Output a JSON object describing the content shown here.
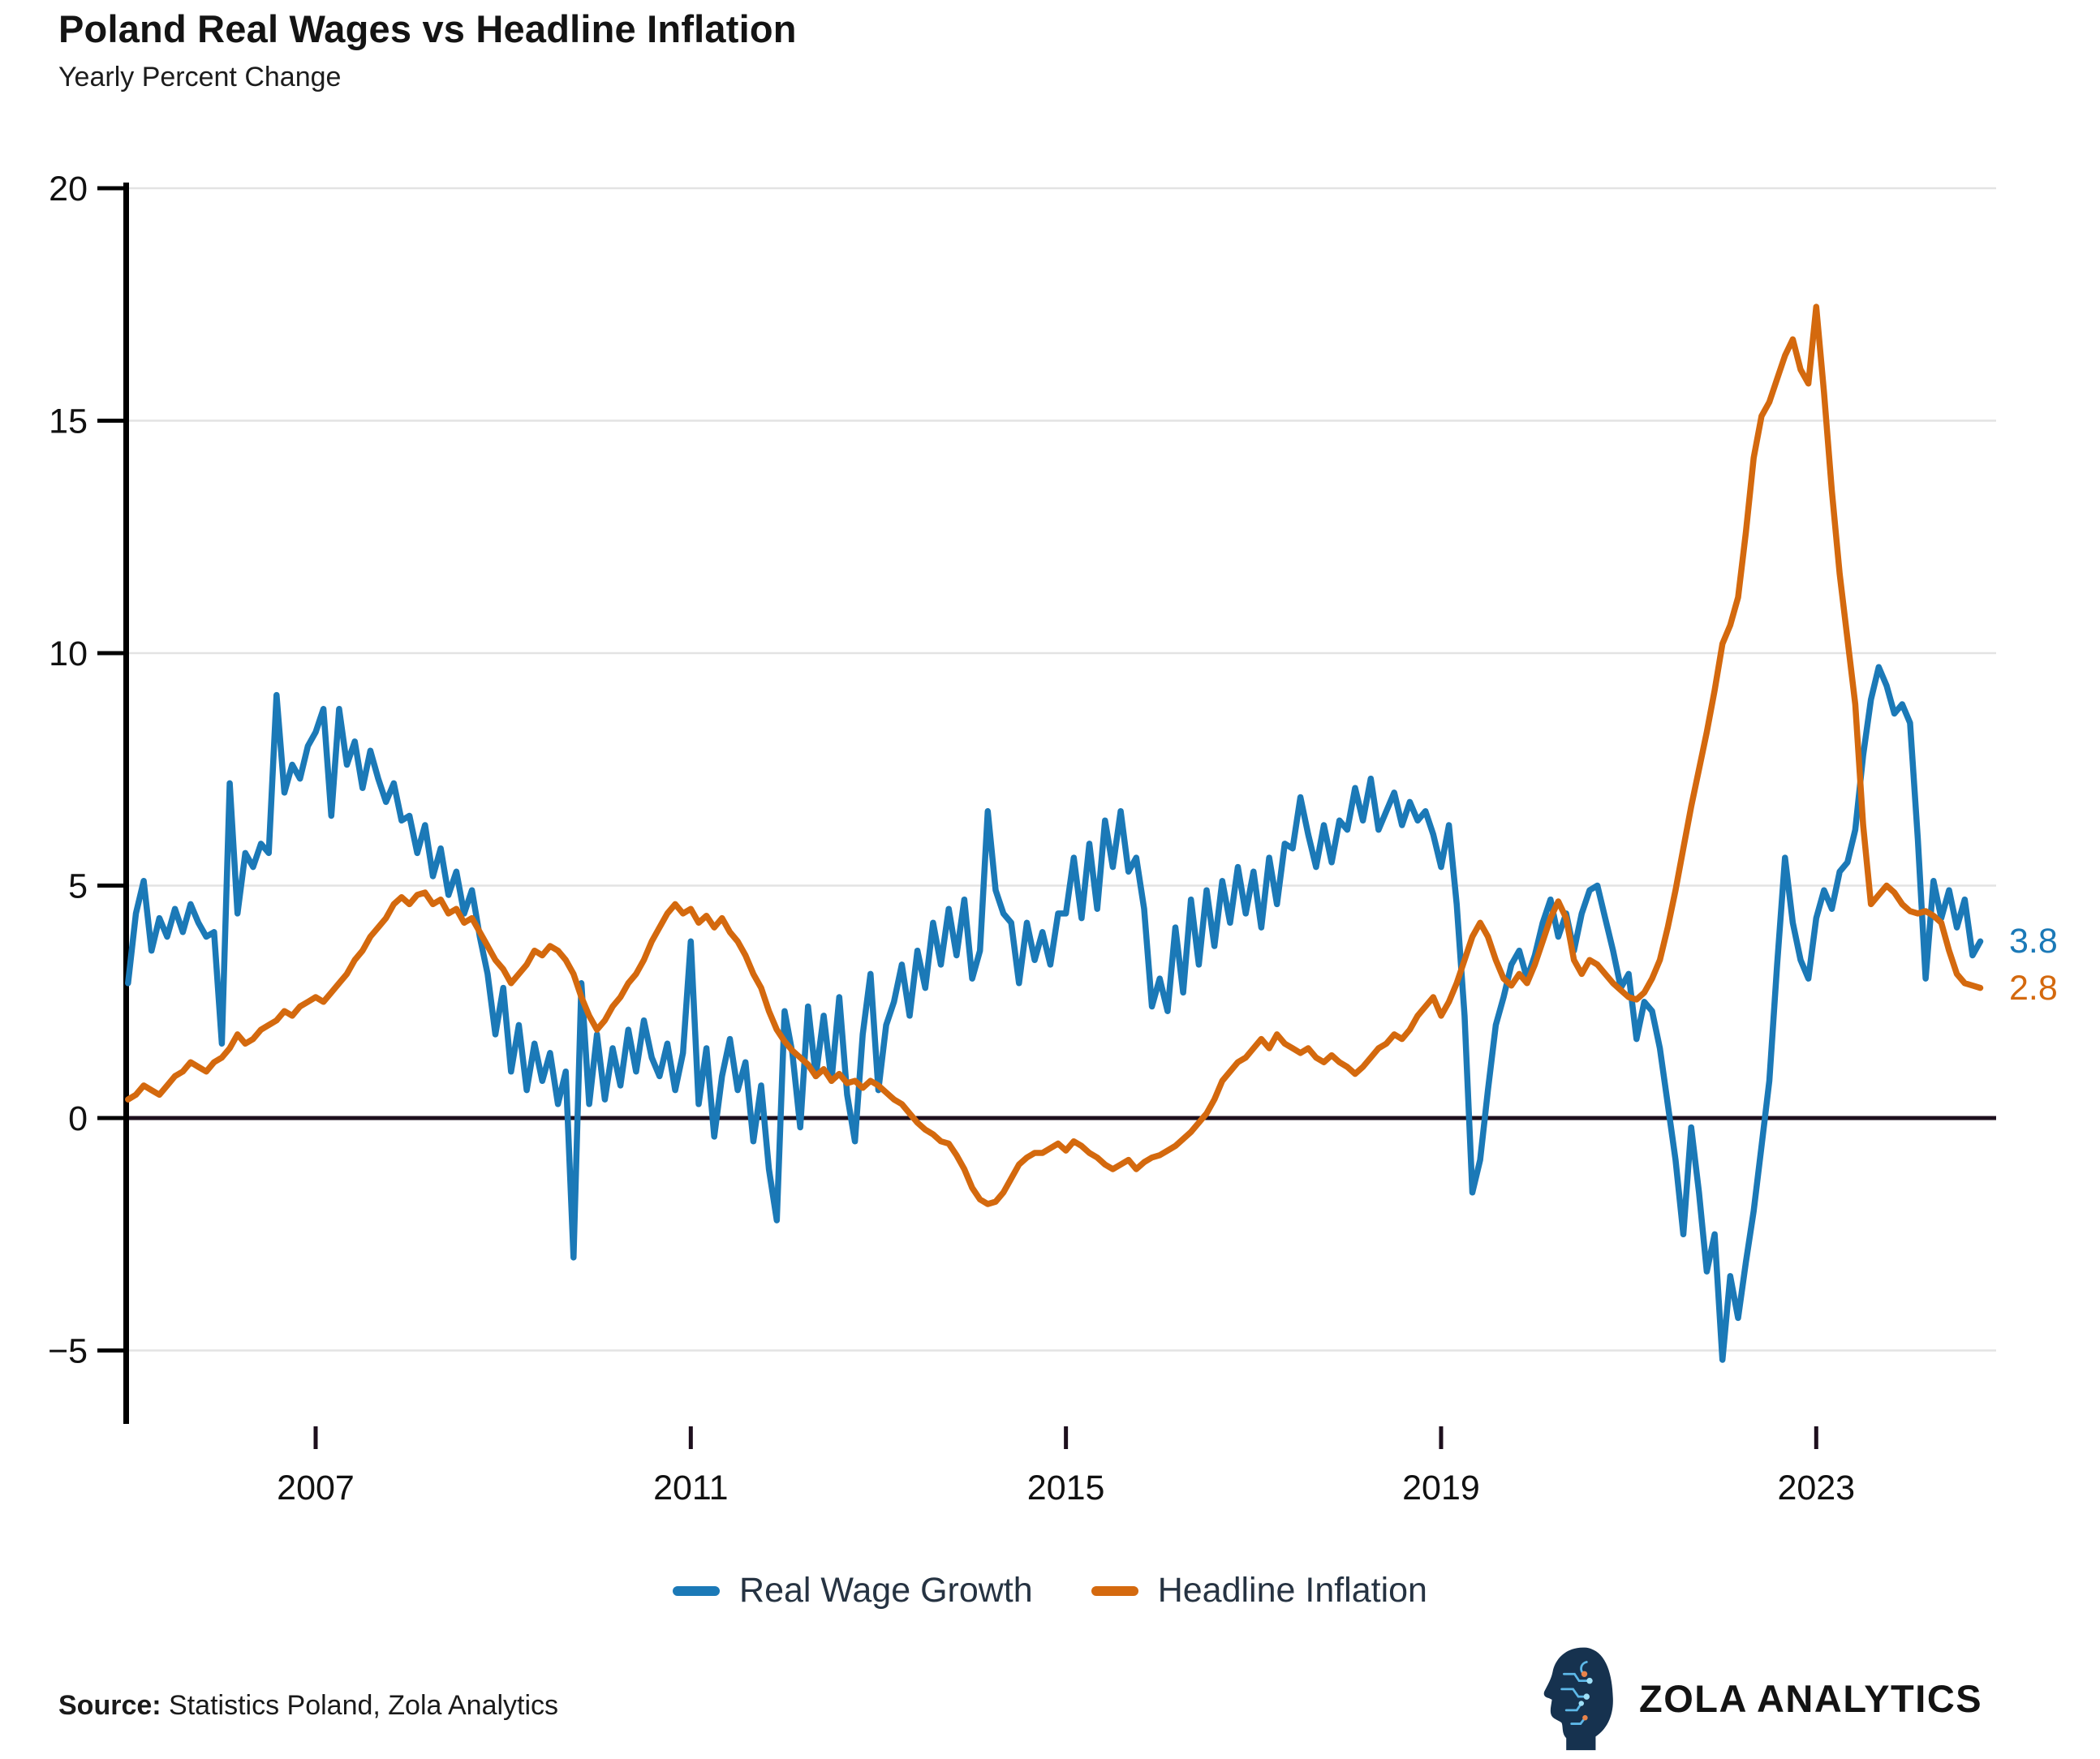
{
  "header": {
    "title": "Poland Real Wages vs Headline Inflation",
    "subtitle": "Yearly Percent Change"
  },
  "colors": {
    "real_wage": "#1b79b7",
    "inflation": "#d4690e",
    "grid": "#e3e3e3",
    "zero_line": "#1d0f1d",
    "axis": "#000000",
    "tick_label": "#111111",
    "legend_text": "#263342"
  },
  "axes": {
    "y_tick_values": [
      20,
      15,
      10,
      5,
      0,
      -5
    ],
    "y_tick_labels": [
      "20",
      "15",
      "10",
      "5",
      "0",
      "−5"
    ],
    "x_tick_values": [
      2007,
      2011,
      2015,
      2019,
      2023
    ],
    "x_tick_labels": [
      "2007",
      "2011",
      "2015",
      "2019",
      "2023"
    ]
  },
  "chart_data": {
    "type": "line",
    "x_start": 2005.0,
    "x_step_years": 0.0833333,
    "xlim": [
      2005.0,
      2024.83
    ],
    "ylim": [
      -5,
      20
    ],
    "grid": "horizontal",
    "legend_position": "bottom-center",
    "series": [
      {
        "name": "Real Wage Growth",
        "color_key": "real_wage",
        "end_label": "3.8",
        "values": [
          2.9,
          4.4,
          5.1,
          3.6,
          4.3,
          3.9,
          4.5,
          4.0,
          4.6,
          4.2,
          3.9,
          4.0,
          1.6,
          7.2,
          4.4,
          5.7,
          5.4,
          5.9,
          5.7,
          9.1,
          7.0,
          7.6,
          7.3,
          8.0,
          8.3,
          8.8,
          6.5,
          8.8,
          7.6,
          8.1,
          7.1,
          7.9,
          7.3,
          6.8,
          7.2,
          6.4,
          6.5,
          5.7,
          6.3,
          5.2,
          5.8,
          4.8,
          5.3,
          4.4,
          4.9,
          3.9,
          3.1,
          1.8,
          2.8,
          1.0,
          2.0,
          0.6,
          1.6,
          0.8,
          1.4,
          0.3,
          1.0,
          -3.0,
          2.9,
          0.3,
          1.8,
          0.4,
          1.5,
          0.7,
          1.9,
          1.0,
          2.1,
          1.3,
          0.9,
          1.6,
          0.6,
          1.4,
          3.8,
          0.3,
          1.5,
          -0.4,
          0.9,
          1.7,
          0.6,
          1.2,
          -0.5,
          0.7,
          -1.1,
          -2.2,
          2.3,
          1.4,
          -0.2,
          2.4,
          0.9,
          2.2,
          0.8,
          2.6,
          0.5,
          -0.5,
          1.8,
          3.1,
          0.6,
          2.0,
          2.5,
          3.3,
          2.2,
          3.6,
          2.8,
          4.2,
          3.3,
          4.5,
          3.5,
          4.7,
          3.0,
          3.6,
          6.6,
          4.9,
          4.4,
          4.2,
          2.9,
          4.2,
          3.4,
          4.0,
          3.3,
          4.4,
          4.4,
          5.6,
          4.3,
          5.9,
          4.5,
          6.4,
          5.4,
          6.6,
          5.3,
          5.6,
          4.5,
          2.4,
          3.0,
          2.3,
          4.1,
          2.7,
          4.7,
          3.3,
          4.9,
          3.7,
          5.1,
          4.2,
          5.4,
          4.4,
          5.3,
          4.1,
          5.6,
          4.6,
          5.9,
          5.8,
          6.9,
          6.1,
          5.4,
          6.3,
          5.5,
          6.4,
          6.2,
          7.1,
          6.4,
          7.3,
          6.2,
          6.6,
          7.0,
          6.3,
          6.8,
          6.4,
          6.6,
          6.1,
          5.4,
          6.3,
          4.6,
          2.2,
          -1.6,
          -0.9,
          0.6,
          2.0,
          2.6,
          3.3,
          3.6,
          3.0,
          3.5,
          4.2,
          4.7,
          3.9,
          4.4,
          3.6,
          4.4,
          4.9,
          5.0,
          4.3,
          3.6,
          2.8,
          3.1,
          1.7,
          2.5,
          2.3,
          1.5,
          0.3,
          -0.9,
          -2.5,
          -0.2,
          -1.6,
          -3.3,
          -2.5,
          -5.2,
          -3.4,
          -4.3,
          -3.1,
          -2.0,
          -0.6,
          0.8,
          3.3,
          5.6,
          4.2,
          3.4,
          3.0,
          4.3,
          4.9,
          4.5,
          5.3,
          5.5,
          6.2,
          7.8,
          9.0,
          9.7,
          9.3,
          8.7,
          8.9,
          8.5,
          6.0,
          3.0,
          5.1,
          4.3,
          4.9,
          4.1,
          4.7,
          3.5,
          3.8
        ]
      },
      {
        "name": "Headline Inflation",
        "color_key": "inflation",
        "end_label": "2.8",
        "values": [
          0.4,
          0.5,
          0.7,
          0.6,
          0.5,
          0.7,
          0.9,
          1.0,
          1.2,
          1.1,
          1.0,
          1.2,
          1.3,
          1.5,
          1.8,
          1.6,
          1.7,
          1.9,
          2.0,
          2.1,
          2.3,
          2.2,
          2.4,
          2.5,
          2.6,
          2.5,
          2.7,
          2.9,
          3.1,
          3.4,
          3.6,
          3.9,
          4.1,
          4.3,
          4.6,
          4.75,
          4.6,
          4.8,
          4.85,
          4.6,
          4.7,
          4.4,
          4.5,
          4.2,
          4.3,
          4.0,
          3.7,
          3.4,
          3.2,
          2.9,
          3.1,
          3.3,
          3.6,
          3.5,
          3.7,
          3.6,
          3.4,
          3.1,
          2.6,
          2.2,
          1.9,
          2.1,
          2.4,
          2.6,
          2.9,
          3.1,
          3.4,
          3.8,
          4.1,
          4.4,
          4.6,
          4.4,
          4.5,
          4.2,
          4.35,
          4.1,
          4.3,
          4.0,
          3.8,
          3.5,
          3.1,
          2.8,
          2.3,
          1.9,
          1.65,
          1.45,
          1.3,
          1.15,
          0.9,
          1.05,
          0.8,
          0.95,
          0.75,
          0.8,
          0.65,
          0.8,
          0.7,
          0.55,
          0.4,
          0.3,
          0.1,
          -0.1,
          -0.25,
          -0.35,
          -0.5,
          -0.55,
          -0.8,
          -1.1,
          -1.5,
          -1.75,
          -1.85,
          -1.8,
          -1.6,
          -1.3,
          -1.0,
          -0.85,
          -0.75,
          -0.75,
          -0.65,
          -0.55,
          -0.7,
          -0.5,
          -0.6,
          -0.75,
          -0.85,
          -1.0,
          -1.1,
          -1.0,
          -0.9,
          -1.1,
          -0.95,
          -0.85,
          -0.8,
          -0.7,
          -0.6,
          -0.45,
          -0.3,
          -0.1,
          0.1,
          0.4,
          0.8,
          1.0,
          1.2,
          1.3,
          1.5,
          1.7,
          1.5,
          1.8,
          1.6,
          1.5,
          1.4,
          1.5,
          1.3,
          1.2,
          1.35,
          1.2,
          1.1,
          0.95,
          1.1,
          1.3,
          1.5,
          1.6,
          1.8,
          1.7,
          1.9,
          2.2,
          2.4,
          2.6,
          2.2,
          2.5,
          2.9,
          3.4,
          3.9,
          4.2,
          3.9,
          3.4,
          3.0,
          2.85,
          3.1,
          2.9,
          3.3,
          3.8,
          4.3,
          4.66,
          4.3,
          3.4,
          3.1,
          3.4,
          3.3,
          3.1,
          2.9,
          2.75,
          2.6,
          2.55,
          2.7,
          3.0,
          3.4,
          4.1,
          4.9,
          5.8,
          6.7,
          7.5,
          8.3,
          9.2,
          10.2,
          10.6,
          11.2,
          12.6,
          14.2,
          15.1,
          15.4,
          15.9,
          16.4,
          16.75,
          16.1,
          15.8,
          17.45,
          15.6,
          13.5,
          11.7,
          10.3,
          8.9,
          6.3,
          4.6,
          4.8,
          5.0,
          4.85,
          4.6,
          4.45,
          4.4,
          4.45,
          4.35,
          4.2,
          3.6,
          3.1,
          2.9,
          2.85,
          2.8
        ]
      }
    ],
    "title": "Poland Real Wages vs Headline Inflation",
    "xlabel": "",
    "ylabel": "Yearly Percent Change"
  },
  "legend": {
    "items": [
      {
        "label": "Real Wage Growth",
        "color_key": "real_wage"
      },
      {
        "label": "Headline Inflation",
        "color_key": "inflation"
      }
    ]
  },
  "source": {
    "label": "Source:",
    "text": " Statistics Poland, Zola Analytics"
  },
  "logo": {
    "brand": "ZOLA ANALYTICS"
  }
}
